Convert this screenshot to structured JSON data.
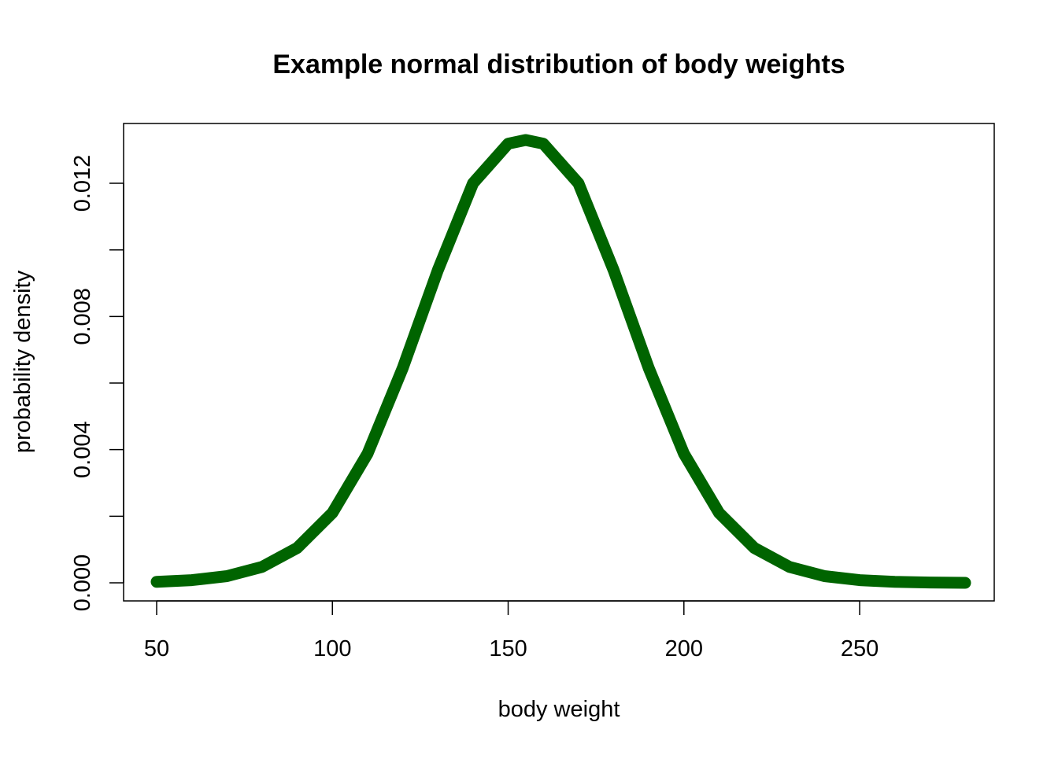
{
  "chart_data": {
    "type": "line",
    "title": "Example normal distribution of body weights",
    "xlabel": "body weight",
    "ylabel": "probability density",
    "xlim": [
      50,
      280
    ],
    "ylim": [
      0,
      0.0133
    ],
    "x_ticks": [
      {
        "value": 50,
        "label": "50"
      },
      {
        "value": 100,
        "label": "100"
      },
      {
        "value": 150,
        "label": "150"
      },
      {
        "value": 200,
        "label": "200"
      },
      {
        "value": 250,
        "label": "250"
      }
    ],
    "y_ticks": [
      {
        "value": 0.0,
        "label": "0.000"
      },
      {
        "value": 0.002,
        "label": ""
      },
      {
        "value": 0.004,
        "label": "0.004"
      },
      {
        "value": 0.006,
        "label": ""
      },
      {
        "value": 0.008,
        "label": "0.008"
      },
      {
        "value": 0.01,
        "label": ""
      },
      {
        "value": 0.012,
        "label": "0.012"
      }
    ],
    "grid": false,
    "series": [
      {
        "color": "#006400",
        "x": [
          50,
          60,
          70,
          80,
          90,
          100,
          110,
          120,
          130,
          140,
          150,
          155,
          160,
          170,
          180,
          190,
          200,
          210,
          220,
          230,
          240,
          250,
          260,
          270,
          280
        ],
        "y": [
          3e-05,
          8e-05,
          0.0002,
          0.00048,
          0.00105,
          0.0021,
          0.00388,
          0.00645,
          0.00939,
          0.012,
          0.01319,
          0.0133,
          0.01319,
          0.012,
          0.00939,
          0.00645,
          0.00388,
          0.0021,
          0.00105,
          0.00048,
          0.0002,
          8e-05,
          3e-05,
          1e-05,
          0.0
        ]
      }
    ]
  }
}
